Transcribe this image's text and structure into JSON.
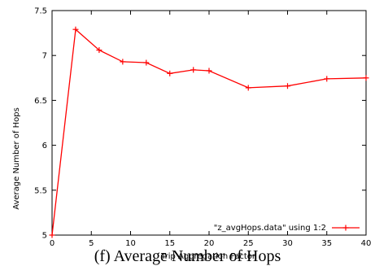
{
  "caption": "(f) Average Number of Hops",
  "chart_data": {
    "type": "line",
    "title": "",
    "xlabel": "Trip Aggregation Factor",
    "ylabel": "Average Number of Hops",
    "xlim": [
      0,
      40
    ],
    "ylim": [
      5,
      7.5
    ],
    "xticks": [
      0,
      5,
      10,
      15,
      20,
      25,
      30,
      35,
      40
    ],
    "xtick_labels": [
      "0",
      "5",
      "10",
      "15",
      "20",
      "25",
      "30",
      "35",
      "40"
    ],
    "yticks": [
      5,
      5.5,
      6,
      6.5,
      7,
      7.5
    ],
    "ytick_labels": [
      "5",
      "5.5",
      "6",
      "6.5",
      "7",
      "7.5"
    ],
    "grid": false,
    "legend_position": "bottom-right",
    "series": [
      {
        "name": "\"z_avgHops.data\" using 1:2",
        "color": "#ff0000",
        "marker": "plus",
        "x": [
          0,
          3,
          6,
          9,
          12,
          15,
          18,
          20,
          25,
          30,
          35,
          40
        ],
        "y": [
          5.0,
          7.29,
          7.06,
          6.93,
          6.92,
          6.8,
          6.84,
          6.83,
          6.64,
          6.66,
          6.74,
          6.75
        ]
      }
    ]
  }
}
